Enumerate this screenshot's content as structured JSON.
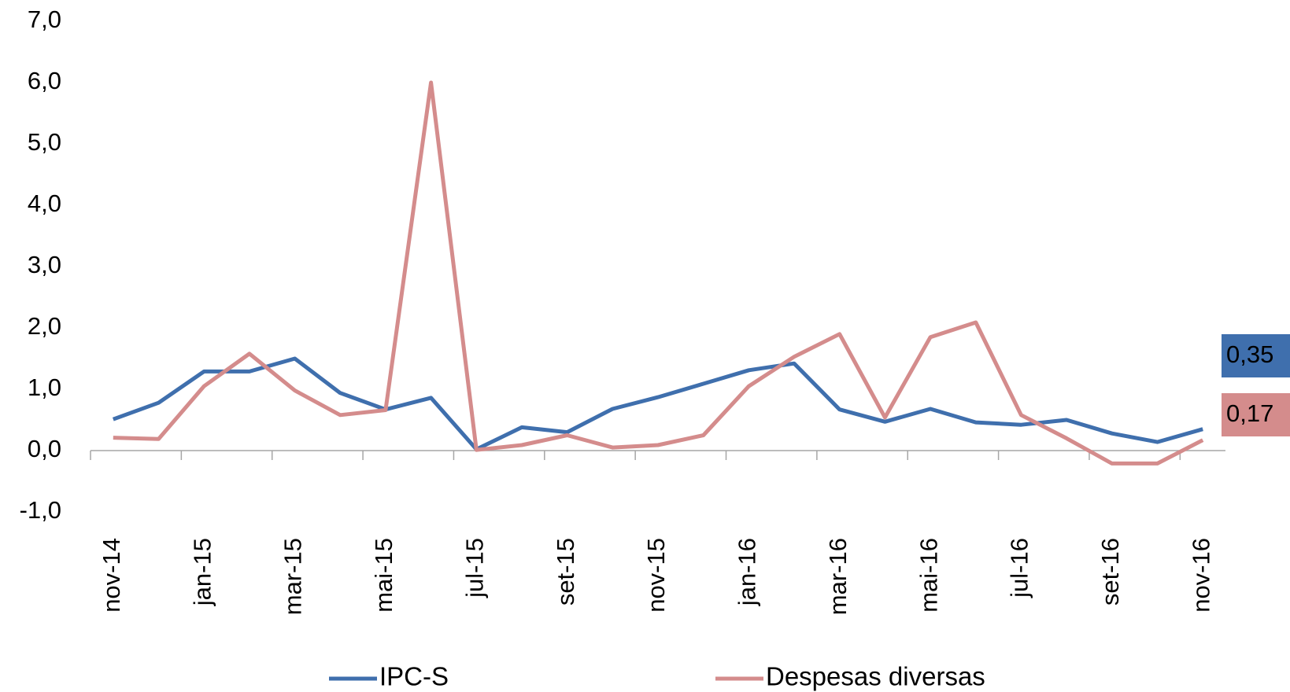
{
  "chart_data": {
    "type": "line",
    "categories": [
      "nov-14",
      null,
      "jan-15",
      null,
      "mar-15",
      null,
      "mai-15",
      null,
      "jul-15",
      null,
      "set-15",
      null,
      "nov-15",
      null,
      "jan-16",
      null,
      "mar-16",
      null,
      "mai-16",
      null,
      "jul-16",
      null,
      "set-16",
      null,
      "nov-16"
    ],
    "series": [
      {
        "name": "IPC-S",
        "color": "#3f6fad",
        "values": [
          0.51,
          0.78,
          1.29,
          1.29,
          1.5,
          0.94,
          0.67,
          0.86,
          0.02,
          0.38,
          0.3,
          0.68,
          0.87,
          1.09,
          1.31,
          1.42,
          0.67,
          0.47,
          0.68,
          0.46,
          0.42,
          0.5,
          0.28,
          0.14,
          0.35
        ],
        "value_labels": [
          null,
          null,
          null,
          null,
          null,
          null,
          null,
          null,
          null,
          null,
          null,
          null,
          null,
          null,
          null,
          null,
          null,
          null,
          null,
          null,
          null,
          null,
          null,
          null,
          "0,35"
        ]
      },
      {
        "name": "Despesas diversas",
        "color": "#d48c8c",
        "values": [
          0.21,
          0.19,
          1.05,
          1.58,
          0.98,
          0.58,
          0.66,
          6.0,
          0.01,
          0.09,
          0.25,
          0.05,
          0.09,
          0.25,
          1.05,
          1.53,
          1.9,
          0.54,
          1.85,
          2.09,
          0.58,
          0.2,
          -0.21,
          -0.21,
          0.17
        ],
        "value_labels": [
          null,
          null,
          null,
          null,
          null,
          null,
          null,
          null,
          null,
          null,
          null,
          null,
          null,
          null,
          null,
          null,
          null,
          null,
          null,
          null,
          null,
          null,
          null,
          null,
          "0,17"
        ]
      }
    ],
    "ylim": [
      -1,
      7
    ],
    "yticks": [
      {
        "value": -1,
        "label": "-1,0"
      },
      {
        "value": 0,
        "label": "0,0"
      },
      {
        "value": 1,
        "label": "1,0"
      },
      {
        "value": 2,
        "label": "2,0"
      },
      {
        "value": 3,
        "label": "3,0"
      },
      {
        "value": 4,
        "label": "4,0"
      },
      {
        "value": 5,
        "label": "5,0"
      },
      {
        "value": 6,
        "label": "6,0"
      },
      {
        "value": 7,
        "label": "7,0"
      }
    ],
    "grid": false,
    "legend": "bottom"
  }
}
